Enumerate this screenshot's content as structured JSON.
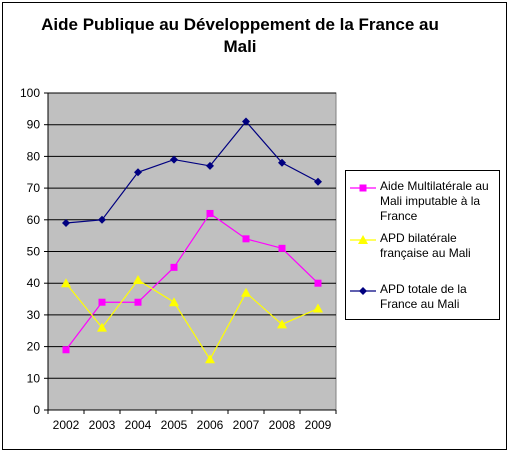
{
  "chart_data": {
    "type": "line",
    "title": "Aide Publique au Développement de la France au Mali",
    "xlabel": "",
    "ylabel": "",
    "ylim": [
      0,
      100
    ],
    "yticks": [
      "0",
      "10",
      "20",
      "30",
      "40",
      "50",
      "60",
      "70",
      "80",
      "90",
      "100"
    ],
    "categories": [
      "2002",
      "2003",
      "2004",
      "2005",
      "2006",
      "2007",
      "2008",
      "2009"
    ],
    "grid": true,
    "legend": "right",
    "series": [
      {
        "name": "Aide Multilatérale au Mali imputable à la France",
        "color": "#ff00ff",
        "marker": "square",
        "values": [
          19,
          34,
          34,
          45,
          62,
          54,
          51,
          40
        ]
      },
      {
        "name": "APD bilatérale française au Mali",
        "color": "#ffff00",
        "marker": "triangle",
        "values": [
          40,
          26,
          41,
          34,
          16,
          37,
          27,
          32
        ]
      },
      {
        "name": "APD totale de la France au Mali",
        "color": "#000080",
        "marker": "diamond",
        "values": [
          59,
          60,
          75,
          79,
          77,
          91,
          78,
          72
        ]
      }
    ]
  }
}
